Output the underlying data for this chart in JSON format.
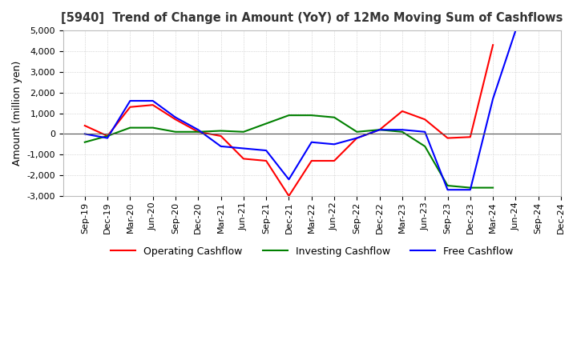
{
  "title": "[5940]  Trend of Change in Amount (YoY) of 12Mo Moving Sum of Cashflows",
  "ylabel": "Amount (million yen)",
  "ylim": [
    -3000,
    5000
  ],
  "yticks": [
    -3000,
    -2000,
    -1000,
    0,
    1000,
    2000,
    3000,
    4000,
    5000
  ],
  "x_labels": [
    "Sep-19",
    "Dec-19",
    "Mar-20",
    "Jun-20",
    "Sep-20",
    "Dec-20",
    "Mar-21",
    "Jun-21",
    "Sep-21",
    "Dec-21",
    "Mar-22",
    "Jun-22",
    "Sep-22",
    "Dec-22",
    "Mar-23",
    "Jun-23",
    "Sep-23",
    "Dec-23",
    "Mar-24",
    "Jun-24",
    "Sep-24",
    "Dec-24"
  ],
  "operating": [
    400,
    -100,
    1300,
    1400,
    700,
    100,
    -100,
    -1200,
    -1300,
    -3000,
    -1300,
    -1300,
    -200,
    200,
    1100,
    700,
    -200,
    -150,
    4300,
    null,
    null,
    null
  ],
  "investing": [
    -400,
    -100,
    300,
    300,
    100,
    100,
    150,
    100,
    500,
    900,
    900,
    800,
    100,
    200,
    100,
    -600,
    -2500,
    -2600,
    -2600,
    null,
    null,
    null
  ],
  "free": [
    0,
    -200,
    1600,
    1600,
    800,
    200,
    -600,
    -700,
    -800,
    -2200,
    -400,
    -500,
    -200,
    200,
    200,
    100,
    -2700,
    -2700,
    1700,
    5000,
    null,
    null
  ],
  "colors": {
    "operating": "#ff0000",
    "investing": "#008000",
    "free": "#0000ff"
  },
  "legend_labels": [
    "Operating Cashflow",
    "Investing Cashflow",
    "Free Cashflow"
  ],
  "background_color": "#ffffff",
  "grid_color": "#bbbbbb"
}
